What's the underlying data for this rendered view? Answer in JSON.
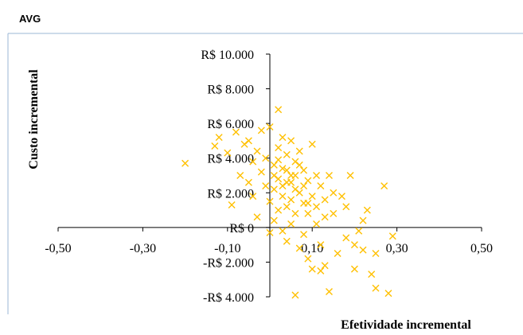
{
  "chart_data": {
    "type": "scatter",
    "title": "AVG",
    "xlabel": "Efetividade incremental",
    "ylabel": "Custo incremental",
    "color": "#FFC000",
    "xlim": [
      -0.5,
      0.5
    ],
    "xticks": [
      {
        "value": -0.5,
        "label": "-0,50"
      },
      {
        "value": -0.3,
        "label": "-0,30"
      },
      {
        "value": -0.1,
        "label": "-0,10"
      },
      {
        "value": 0.1,
        "label": "0,10"
      },
      {
        "value": 0.3,
        "label": "0,30"
      },
      {
        "value": 0.5,
        "label": "0,50"
      }
    ],
    "ylim": [
      -4000,
      10000
    ],
    "yticks": [
      {
        "value": -4000,
        "label": "-R$ 4.000"
      },
      {
        "value": -2000,
        "label": "-R$ 2.000"
      },
      {
        "value": 0,
        "label": "R$ 0"
      },
      {
        "value": 2000,
        "label": "R$ 2.000"
      },
      {
        "value": 4000,
        "label": "R$ 4.000"
      },
      {
        "value": 6000,
        "label": "R$ 6.000"
      },
      {
        "value": 8000,
        "label": "R$ 8.000"
      },
      {
        "value": 10000,
        "label": "R$ 10.000"
      }
    ],
    "x": [
      -0.2,
      -0.13,
      -0.12,
      -0.1,
      -0.09,
      -0.08,
      -0.07,
      -0.06,
      -0.05,
      -0.05,
      -0.04,
      -0.04,
      -0.03,
      -0.03,
      -0.02,
      -0.02,
      -0.01,
      -0.01,
      0,
      0,
      0,
      0.01,
      0.01,
      0.01,
      0.02,
      0.02,
      0.02,
      0.02,
      0.03,
      0.03,
      0.03,
      0.03,
      0.04,
      0.04,
      0.04,
      0.04,
      0.05,
      0.05,
      0.05,
      0.05,
      0.06,
      0.06,
      0.06,
      0.06,
      0.07,
      0.07,
      0.07,
      0.08,
      0.08,
      0.08,
      0.09,
      0.09,
      0.09,
      0.1,
      0.1,
      0.1,
      0.11,
      0.11,
      0.12,
      0.12,
      0.13,
      0.13,
      0.14,
      0.15,
      0.16,
      0.17,
      0.18,
      0.19,
      0.2,
      0.21,
      0.22,
      0.23,
      0.24,
      0.25,
      0.27,
      0.28,
      0.29,
      0.14,
      0.2,
      0.15,
      0.02,
      0.04,
      0.06,
      0.08,
      0.03,
      0.05,
      0.07,
      0.01,
      0.09,
      0.11,
      0.13,
      0.18,
      0.22,
      0.25,
      0.12
    ],
    "y": [
      3700,
      4700,
      5200,
      4300,
      1300,
      5500,
      3000,
      4800,
      2600,
      5000,
      3800,
      1800,
      4400,
      600,
      3200,
      5600,
      2400,
      4000,
      5800,
      1500,
      -300,
      3600,
      2200,
      400,
      6800,
      4600,
      2800,
      1000,
      5200,
      3400,
      1800,
      -200,
      4200,
      2600,
      1200,
      -800,
      5000,
      3000,
      1600,
      200,
      3800,
      2200,
      800,
      -3900,
      4400,
      2000,
      -1200,
      3300,
      1400,
      -400,
      2700,
      800,
      -1800,
      4800,
      1800,
      -2400,
      3000,
      200,
      2400,
      -1000,
      1600,
      -2200,
      3000,
      800,
      -1500,
      1800,
      -600,
      3000,
      -2400,
      -200,
      -1300,
      1000,
      -2700,
      -3500,
      2400,
      -3800,
      -500,
      -3700,
      -1000,
      2000,
      3900,
      3300,
      3000,
      2400,
      2400,
      2600,
      3600,
      3000,
      1400,
      1200,
      600,
      1200,
      400,
      -1500,
      -2500
    ]
  }
}
